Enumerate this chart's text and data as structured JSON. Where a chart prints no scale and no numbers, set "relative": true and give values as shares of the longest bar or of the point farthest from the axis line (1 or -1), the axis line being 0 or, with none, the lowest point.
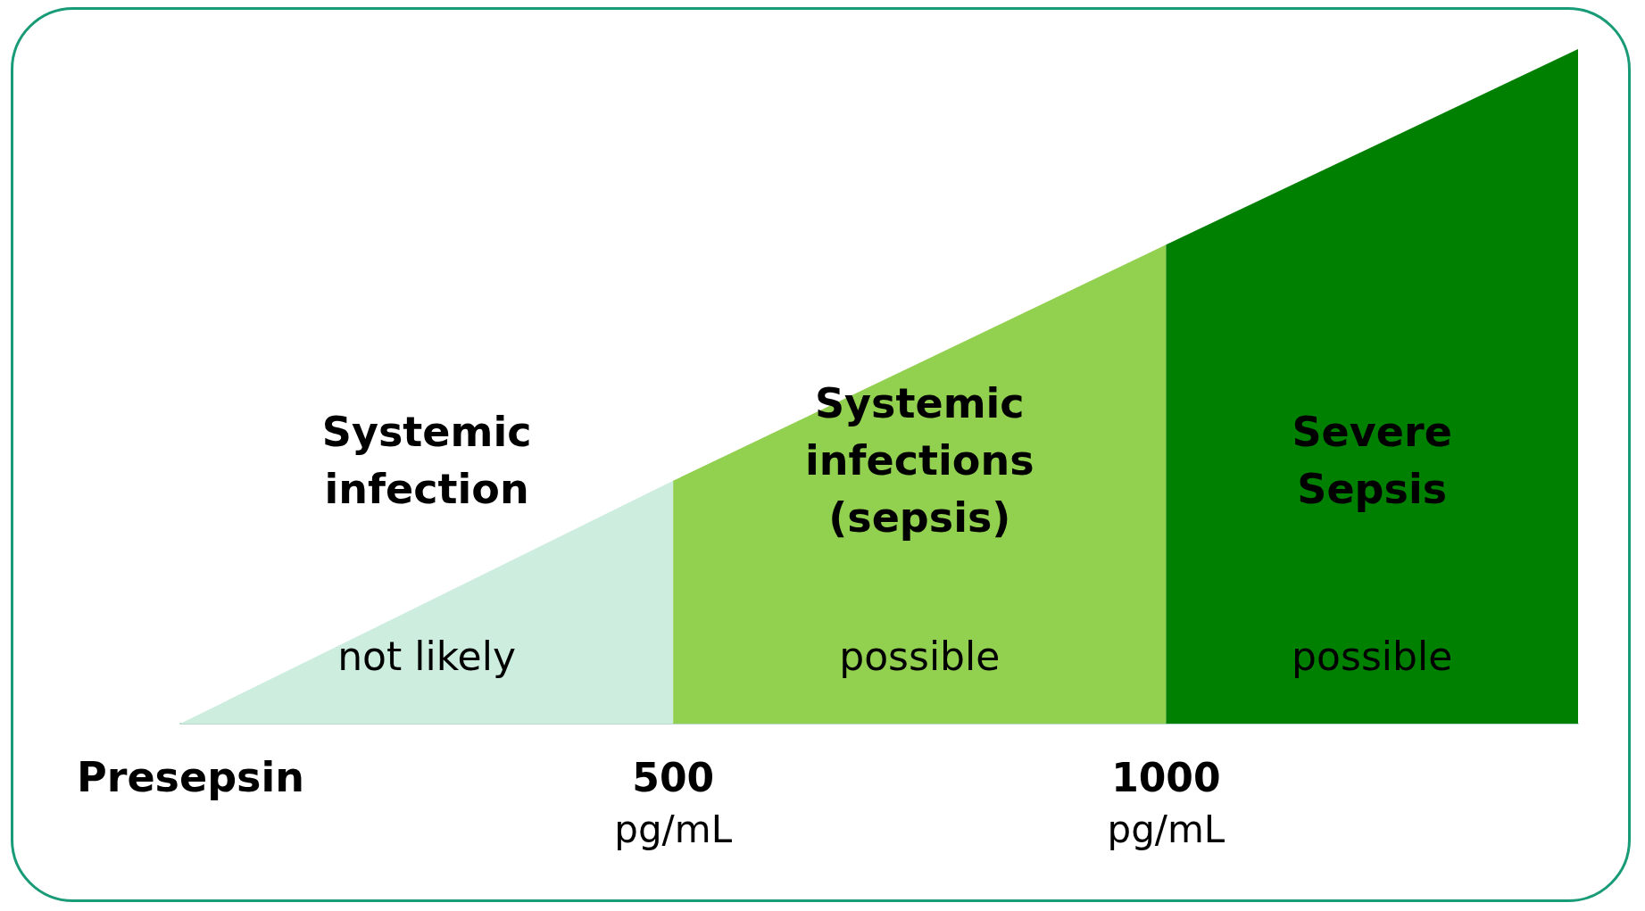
{
  "chart_data": {
    "type": "area",
    "relative": true,
    "xlabel": "Presepsin",
    "xlim": [
      0,
      1418
    ],
    "xticks": [
      {
        "value": 500,
        "label": "500\npg/mL"
      },
      {
        "value": 1000,
        "label": "1000\npg/mL"
      }
    ],
    "series": [
      {
        "name": "Systemic\ninfection",
        "color": "#cdeddf",
        "x": [
          0,
          500
        ],
        "values": [
          0,
          0.36
        ]
      },
      {
        "name": "Systemic\ninfections\n(sepsis)",
        "color": "#92d050",
        "x": [
          500,
          1000
        ],
        "values": [
          0.36,
          0.71
        ]
      },
      {
        "name": "Severe\nSepsis",
        "color": "#008000",
        "x": [
          1000,
          1418
        ],
        "values": [
          0.71,
          1
        ]
      }
    ],
    "annotations": [
      "not likely",
      "possible",
      "possible"
    ],
    "grid": false
  }
}
